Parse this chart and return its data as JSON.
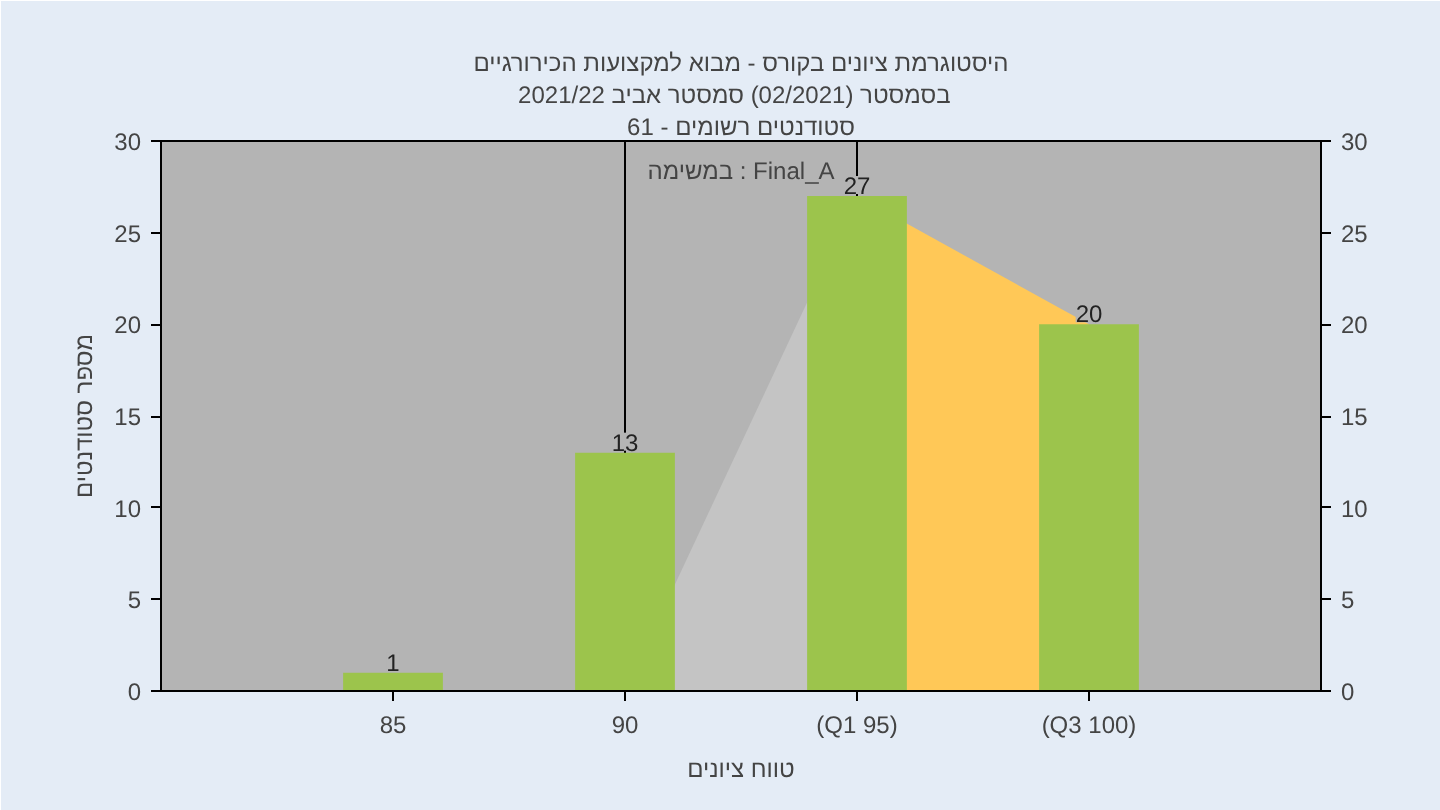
{
  "chart_data": {
    "type": "bar",
    "title": "היסטוגרמת ציונים בקורס - מבוא למקצועות הכירורגיים",
    "subtitle": "בסמסטר  (02/2021)  סמסטר אביב 2021/22",
    "xlabel": "טווח ציונים",
    "ylabel": "מספר סטודנטים",
    "annotations": [
      "סטודנטים רשומים - 61",
      "במשימה : Final_A"
    ],
    "categories": [
      "85",
      "90",
      "(Q1 95)",
      "(Q3 100)"
    ],
    "series": [
      {
        "type": "area",
        "color": "#c4c4c4",
        "values": [
          null,
          0,
          27,
          null
        ]
      },
      {
        "type": "area",
        "color": "#ffc857",
        "values": [
          null,
          null,
          27,
          20
        ]
      },
      {
        "color": "#9cc44c",
        "values": [
          1,
          13,
          27,
          20
        ],
        "value_labels": [
          "1",
          "13",
          "27",
          "20"
        ]
      }
    ],
    "ylim": [
      0,
      30
    ],
    "yticks": [
      0,
      5,
      10,
      15,
      20,
      25,
      30
    ],
    "y2lim": [
      0,
      30
    ],
    "y2ticks": [
      0,
      5,
      10,
      15,
      20,
      25,
      30
    ],
    "ref_lines": [
      {
        "axis": "x",
        "value": "90",
        "color": "#000000"
      },
      {
        "axis": "x",
        "value": "(Q1 95)",
        "color": "#000000"
      }
    ],
    "grid": false
  }
}
